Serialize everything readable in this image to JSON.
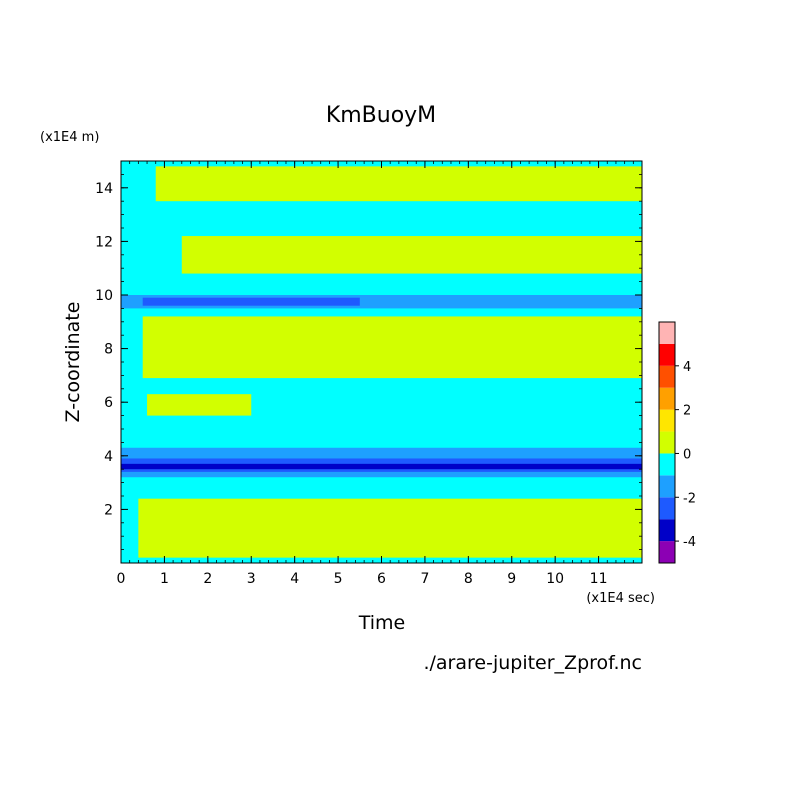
{
  "chart_data": {
    "type": "heatmap",
    "title": "KmBuoyM",
    "xlabel": "Time",
    "ylabel": "Z-coordinate",
    "x_unit": "(x1E4 sec)",
    "y_unit": "(x1E4 m)",
    "source_file": "./arare-jupiter_Zprof.nc",
    "xlim": [
      0,
      12
    ],
    "ylim": [
      0,
      15
    ],
    "x_ticks": [
      0,
      1,
      2,
      3,
      4,
      5,
      6,
      7,
      8,
      9,
      10,
      11
    ],
    "y_ticks": [
      2,
      4,
      6,
      8,
      10,
      12,
      14
    ],
    "grid": false,
    "colorbar": {
      "ticks": [
        -4,
        -2,
        0,
        2,
        4
      ],
      "levels": [
        {
          "range": [
            -5,
            -4
          ],
          "color": "#8c00b4"
        },
        {
          "range": [
            -4,
            -3
          ],
          "color": "#0000c8"
        },
        {
          "range": [
            -3,
            -2
          ],
          "color": "#1e5aff"
        },
        {
          "range": [
            -2,
            -1
          ],
          "color": "#1ea0ff"
        },
        {
          "range": [
            -1,
            0
          ],
          "color": "#00ffff"
        },
        {
          "range": [
            0,
            1
          ],
          "color": "#d2ff00"
        },
        {
          "range": [
            1,
            2
          ],
          "color": "#ffe600"
        },
        {
          "range": [
            2,
            3
          ],
          "color": "#ffa000"
        },
        {
          "range": [
            3,
            4
          ],
          "color": "#ff5000"
        },
        {
          "range": [
            4,
            5
          ],
          "color": "#ff0000"
        },
        {
          "range": [
            5,
            6
          ],
          "color": "#ffb4b4"
        }
      ]
    },
    "background_color": "#00ffff",
    "bands": [
      {
        "t0": 0.8,
        "t1": 12,
        "z0": 13.5,
        "z1": 14.8,
        "color": "#d2ff00"
      },
      {
        "t0": 1.4,
        "t1": 12,
        "z0": 10.8,
        "z1": 12.2,
        "color": "#d2ff00"
      },
      {
        "t0": 0,
        "t1": 12,
        "z0": 9.5,
        "z1": 10.0,
        "color": "#1ea0ff"
      },
      {
        "t0": 0.5,
        "t1": 5.5,
        "z0": 9.6,
        "z1": 9.9,
        "color": "#1e5aff"
      },
      {
        "t0": 0.5,
        "t1": 12,
        "z0": 6.9,
        "z1": 9.2,
        "color": "#d2ff00"
      },
      {
        "t0": 0.6,
        "t1": 3.0,
        "z0": 5.5,
        "z1": 6.3,
        "color": "#d2ff00"
      },
      {
        "t0": 0,
        "t1": 12,
        "z0": 3.2,
        "z1": 4.3,
        "color": "#1ea0ff"
      },
      {
        "t0": 0,
        "t1": 12,
        "z0": 3.4,
        "z1": 3.9,
        "color": "#1e5aff"
      },
      {
        "t0": 0,
        "t1": 12,
        "z0": 3.5,
        "z1": 3.7,
        "color": "#0000c8"
      },
      {
        "t0": 0.4,
        "t1": 12,
        "z0": 0.2,
        "z1": 2.4,
        "color": "#d2ff00"
      }
    ]
  }
}
